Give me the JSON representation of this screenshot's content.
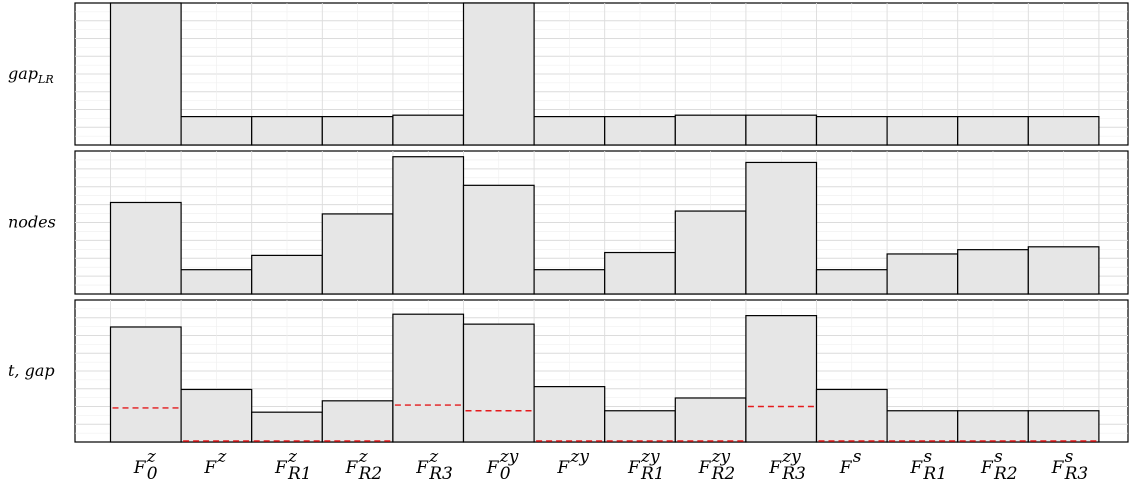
{
  "chart_data": {
    "type": "bar",
    "categories": [
      {
        "base": "F",
        "sup": "z",
        "sub": "0"
      },
      {
        "base": "F",
        "sup": "z",
        "sub": ""
      },
      {
        "base": "F",
        "sup": "z",
        "sub": "R1"
      },
      {
        "base": "F",
        "sup": "z",
        "sub": "R2"
      },
      {
        "base": "F",
        "sup": "z",
        "sub": "R3"
      },
      {
        "base": "F",
        "sup": "zy",
        "sub": "0"
      },
      {
        "base": "F",
        "sup": "zy",
        "sub": ""
      },
      {
        "base": "F",
        "sup": "zy",
        "sub": "R1"
      },
      {
        "base": "F",
        "sup": "zy",
        "sub": "R2"
      },
      {
        "base": "F",
        "sup": "zy",
        "sub": "R3"
      },
      {
        "base": "F",
        "sup": "s",
        "sub": ""
      },
      {
        "base": "F",
        "sup": "s",
        "sub": "R1"
      },
      {
        "base": "F",
        "sup": "s",
        "sub": "R2"
      },
      {
        "base": "F",
        "sup": "s",
        "sub": "R3"
      }
    ],
    "panels": [
      {
        "ylabel_base": "gap",
        "ylabel_sub": "LR",
        "ylim": [
          0,
          1
        ],
        "values": [
          1.0,
          0.2,
          0.2,
          0.2,
          0.21,
          1.0,
          0.2,
          0.2,
          0.21,
          0.21,
          0.2,
          0.2,
          0.2,
          0.2
        ]
      },
      {
        "ylabel_base": "nodes",
        "ylabel_sub": "",
        "ylim": [
          0,
          1
        ],
        "values": [
          0.64,
          0.17,
          0.27,
          0.56,
          0.96,
          0.76,
          0.17,
          0.29,
          0.58,
          0.92,
          0.17,
          0.28,
          0.31,
          0.33
        ]
      },
      {
        "ylabel_base": "t, gap",
        "ylabel_sub": "",
        "ylim": [
          0,
          1
        ],
        "values": [
          0.81,
          0.37,
          0.21,
          0.29,
          0.9,
          0.83,
          0.39,
          0.22,
          0.31,
          0.89,
          0.37,
          0.22,
          0.22,
          0.22
        ],
        "gap_values": [
          0.24,
          0.0,
          0.0,
          0.0,
          0.26,
          0.22,
          0.0,
          0.0,
          0.0,
          0.25,
          0.0,
          0.0,
          0.0,
          0.0
        ]
      }
    ],
    "bar_color": "#e6e6e6",
    "gap_line_color": "#e41a1c",
    "grid": true
  }
}
